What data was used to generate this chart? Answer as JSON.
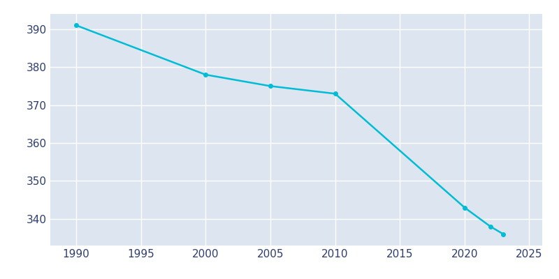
{
  "years": [
    1990,
    2000,
    2005,
    2010,
    2020,
    2022,
    2023
  ],
  "population": [
    391,
    378,
    375,
    373,
    343,
    338,
    336
  ],
  "line_color": "#00bcd4",
  "marker": "o",
  "marker_size": 4,
  "line_width": 1.8,
  "background_color": "#dde6f0",
  "fig_bg_color": "#ffffff",
  "grid_color": "#ffffff",
  "tick_color": "#2d3e6e",
  "xlim": [
    1988,
    2026
  ],
  "ylim": [
    333,
    394
  ],
  "xticks": [
    1990,
    1995,
    2000,
    2005,
    2010,
    2015,
    2020,
    2025
  ],
  "yticks": [
    340,
    350,
    360,
    370,
    380,
    390
  ]
}
